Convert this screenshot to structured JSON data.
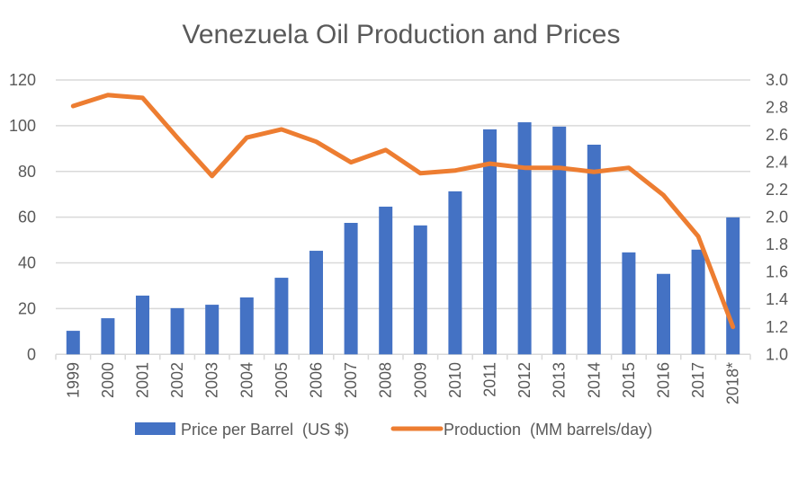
{
  "chart_data": {
    "type": "bar+line",
    "title": "Venezuela Oil Production and Prices",
    "categories": [
      "1999",
      "2000",
      "2001",
      "2002",
      "2003",
      "2004",
      "2005",
      "2006",
      "2007",
      "2008",
      "2009",
      "2010",
      "2011",
      "2012",
      "2013",
      "2014",
      "2015",
      "2016",
      "2017",
      "2018*"
    ],
    "series": [
      {
        "name": "Price per Barrel  (US $)",
        "type": "bar",
        "axis": "left",
        "color": "#4472C4",
        "values": [
          10.3,
          15.8,
          25.7,
          20.2,
          21.7,
          24.9,
          33.5,
          45.3,
          57.5,
          64.6,
          56.4,
          71.3,
          98.4,
          101.5,
          99.6,
          91.7,
          44.6,
          35.2,
          45.8,
          59.9
        ]
      },
      {
        "name": "Production  (MM barrels/day)",
        "type": "line",
        "axis": "right",
        "color": "#ED7D31",
        "values": [
          2.81,
          2.89,
          2.87,
          2.58,
          2.3,
          2.58,
          2.64,
          2.55,
          2.4,
          2.49,
          2.32,
          2.34,
          2.39,
          2.36,
          2.36,
          2.33,
          2.36,
          2.16,
          1.86,
          1.2
        ]
      }
    ],
    "y_left": {
      "range": [
        0,
        120
      ],
      "ticks": [
        "0",
        "20",
        "40",
        "60",
        "80",
        "100",
        "120"
      ]
    },
    "y_right": {
      "range": [
        1.0,
        3.0
      ],
      "ticks": [
        "1.0",
        "1.2",
        "1.4",
        "1.6",
        "1.8",
        "2.0",
        "2.2",
        "2.4",
        "2.6",
        "2.8",
        "3.0"
      ]
    },
    "grid": true,
    "legend": "bottom"
  }
}
